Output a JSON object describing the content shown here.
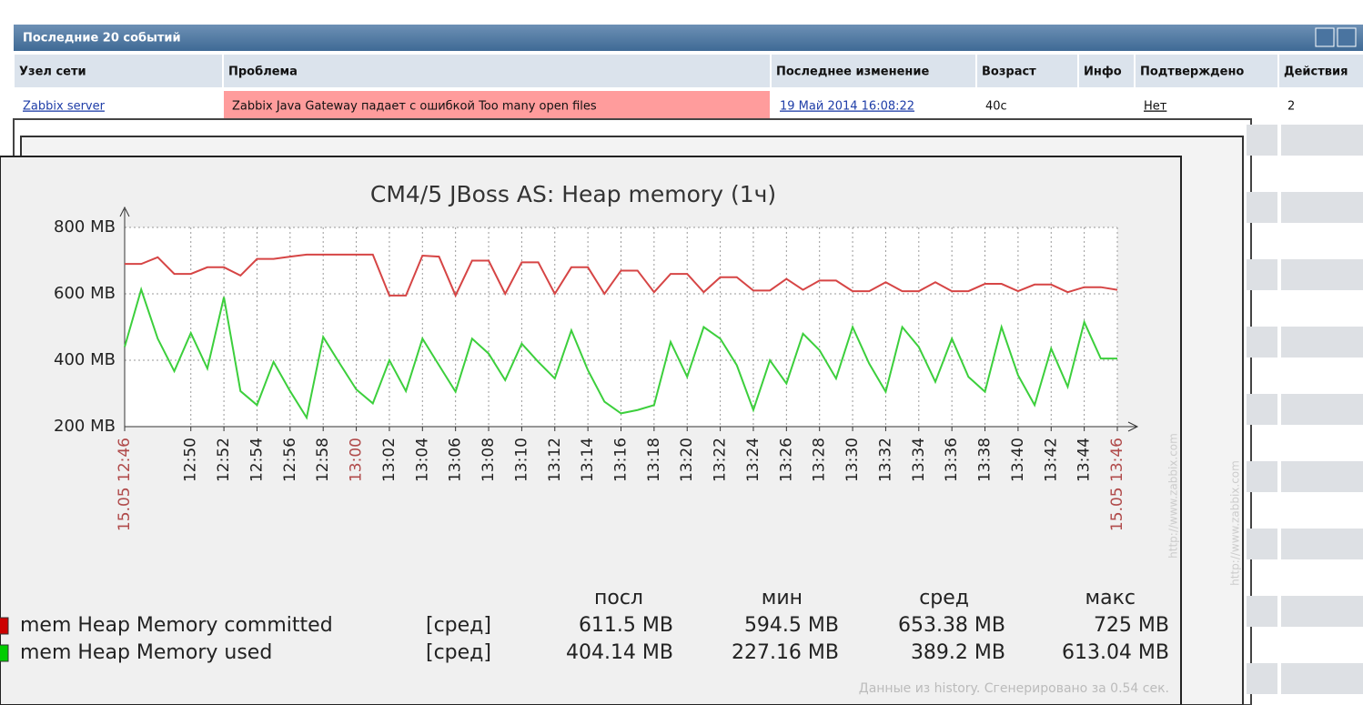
{
  "panel": {
    "title": "Последние 20 событий",
    "columns": [
      "Узел сети",
      "Проблема",
      "Последнее изменение",
      "Возраст",
      "Инфо",
      "Подтверждено",
      "Действия"
    ],
    "rows": [
      {
        "host": "Zabbix server",
        "problem": "Zabbix Java Gateway падает с ошибкой Too many open files",
        "last_change": "19 Май 2014 16:08:22",
        "age": "40с",
        "acknowledged": "Нет",
        "actions": "2"
      }
    ]
  },
  "chart_data": {
    "type": "line",
    "title": "CM4/5 JBoss AS: Heap memory (1ч)",
    "x": [
      "12:46",
      "12:47",
      "12:48",
      "12:49",
      "12:50",
      "12:51",
      "12:52",
      "12:53",
      "12:54",
      "12:55",
      "12:56",
      "12:57",
      "12:58",
      "12:59",
      "13:00",
      "13:01",
      "13:02",
      "13:03",
      "13:04",
      "13:05",
      "13:06",
      "13:07",
      "13:08",
      "13:09",
      "13:10",
      "13:11",
      "13:12",
      "13:13",
      "13:14",
      "13:15",
      "13:16",
      "13:17",
      "13:18",
      "13:19",
      "13:20",
      "13:21",
      "13:22",
      "13:23",
      "13:24",
      "13:25",
      "13:26",
      "13:27",
      "13:28",
      "13:29",
      "13:30",
      "13:31",
      "13:32",
      "13:33",
      "13:34",
      "13:35",
      "13:36",
      "13:37",
      "13:38",
      "13:39",
      "13:40",
      "13:41",
      "13:42",
      "13:43",
      "13:44",
      "13:45",
      "13:46"
    ],
    "series": [
      {
        "name": "mem Heap Memory committed",
        "color": "#d64545",
        "legend_color": "#cc0000",
        "function": "[сред]",
        "stats": [
          "611.5 MB",
          "594.5 MB",
          "653.38 MB",
          "725 MB"
        ],
        "values": [
          690,
          690,
          710,
          660,
          660,
          680,
          680,
          655,
          705,
          705,
          712,
          718,
          718,
          718,
          718,
          718,
          595,
          595,
          715,
          712,
          595,
          700,
          700,
          600,
          695,
          695,
          600,
          680,
          680,
          600,
          670,
          670,
          605,
          660,
          660,
          605,
          650,
          650,
          610,
          610,
          645,
          612,
          640,
          640,
          608,
          608,
          635,
          608,
          608,
          635,
          608,
          608,
          630,
          630,
          608,
          628,
          628,
          605,
          620,
          620,
          612
        ]
      },
      {
        "name": "mem Heap Memory used",
        "color": "#3ccf3c",
        "legend_color": "#00cc00",
        "function": "[сред]",
        "stats": [
          "404.14 MB",
          "227.16 MB",
          "389.2 MB",
          "613.04 MB"
        ],
        "values": [
          440,
          613,
          465,
          367,
          482,
          375,
          590,
          307,
          265,
          395,
          307,
          227,
          470,
          390,
          312,
          270,
          400,
          307,
          465,
          385,
          305,
          465,
          420,
          340,
          450,
          395,
          345,
          490,
          370,
          275,
          240,
          250,
          265,
          455,
          350,
          500,
          465,
          385,
          250,
          400,
          330,
          480,
          430,
          345,
          500,
          390,
          305,
          500,
          440,
          335,
          465,
          350,
          305,
          500,
          355,
          265,
          435,
          320,
          515,
          405,
          405
        ]
      }
    ],
    "ylim": [
      200,
      800
    ],
    "yticks": [
      {
        "value": 200,
        "label": "200 MB"
      },
      {
        "value": 400,
        "label": "400 MB"
      },
      {
        "value": 600,
        "label": "600 MB"
      },
      {
        "value": 800,
        "label": "800 MB"
      }
    ],
    "xticks": [
      {
        "value": "12:46",
        "label": "15.05 12:46",
        "color": "#b04a4a"
      },
      "12:50",
      "12:52",
      "12:54",
      "12:56",
      "12:58",
      {
        "value": "13:00",
        "label": "13:00",
        "color": "#b04a4a"
      },
      "13:02",
      "13:04",
      "13:06",
      "13:08",
      "13:10",
      "13:12",
      "13:14",
      "13:16",
      "13:18",
      "13:20",
      "13:22",
      "13:24",
      "13:26",
      "13:28",
      "13:30",
      "13:32",
      "13:34",
      "13:36",
      "13:38",
      "13:40",
      "13:42",
      "13:44",
      {
        "value": "13:46",
        "label": "15.05 13:46",
        "color": "#b04a4a"
      }
    ],
    "grid": true,
    "legend_headers": [
      "посл",
      "мин",
      "сред",
      "макс"
    ],
    "footer": "Данные из history. Сгенерировано за 0.54 сек.",
    "watermark": "http://www.zabbix.com"
  }
}
